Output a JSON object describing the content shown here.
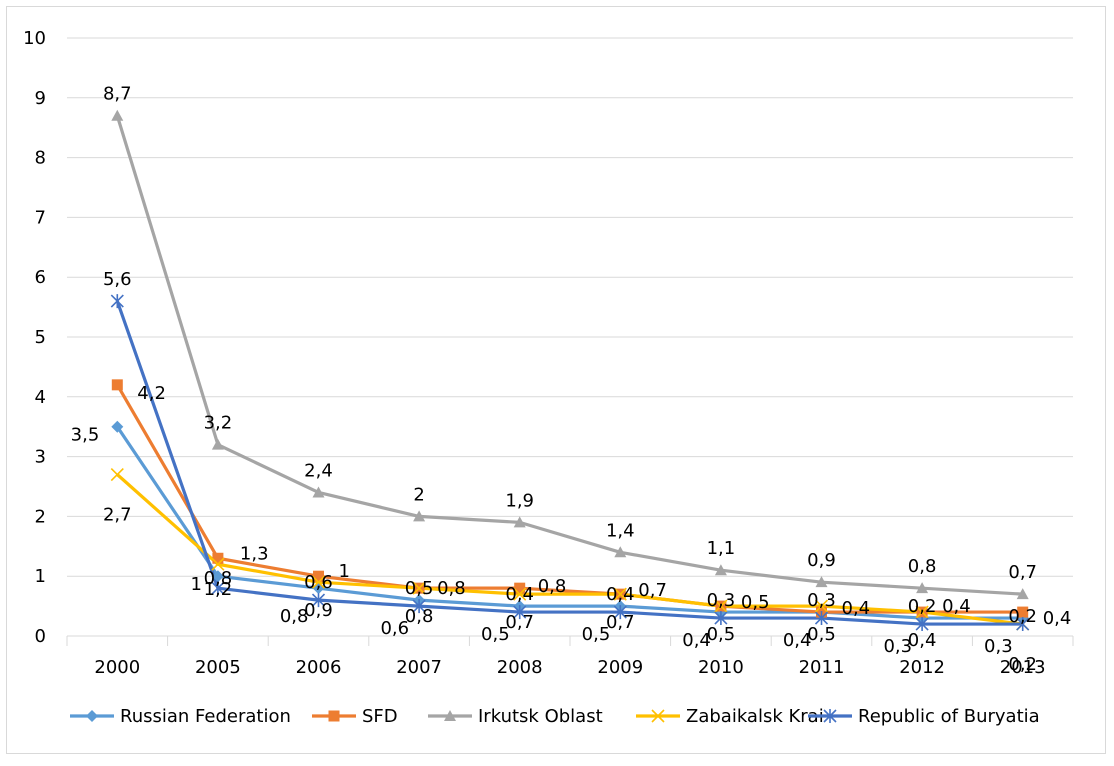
{
  "chart_data": {
    "type": "line",
    "categories": [
      "2000",
      "2005",
      "2006",
      "2007",
      "2008",
      "2009",
      "2010",
      "2011",
      "2012",
      "2013"
    ],
    "ylim": [
      0,
      10
    ],
    "yticks": [
      "0",
      "1",
      "2",
      "3",
      "4",
      "5",
      "6",
      "7",
      "8",
      "9",
      "10"
    ],
    "grid": true,
    "legend_position": "bottom",
    "series": [
      {
        "name": "Russian Federation",
        "color": "#5b9bd5",
        "marker": "diamond",
        "values": [
          3.5,
          1,
          0.8,
          0.6,
          0.5,
          0.5,
          0.4,
          0.4,
          0.3,
          0.3
        ],
        "labels": [
          "3,5",
          "1",
          "0,8",
          "0,6",
          "0,5",
          "0,5",
          "0,4",
          "0,4",
          "0,3",
          "0,3"
        ]
      },
      {
        "name": "SFD",
        "color": "#ed7d31",
        "marker": "square",
        "values": [
          4.2,
          1.3,
          1,
          0.8,
          0.8,
          0.7,
          0.5,
          0.4,
          0.4,
          0.4
        ],
        "labels": [
          "4,2",
          "1,3",
          "1",
          "0,8",
          "0,8",
          "0,7",
          "0,5",
          "0,4",
          "0,4",
          "0,4"
        ]
      },
      {
        "name": "Irkutsk Oblast",
        "color": "#a5a5a5",
        "marker": "triangle",
        "values": [
          8.7,
          3.2,
          2.4,
          2,
          1.9,
          1.4,
          1.1,
          0.9,
          0.8,
          0.7
        ],
        "labels": [
          "8,7",
          "3,2",
          "2,4",
          "2",
          "1,9",
          "1,4",
          "1,1",
          "0,9",
          "0,8",
          "0,7"
        ]
      },
      {
        "name": "Zabaikalsk Krai",
        "color": "#ffc000",
        "marker": "x",
        "values": [
          2.7,
          1.2,
          0.9,
          0.8,
          0.7,
          0.7,
          0.5,
          0.5,
          0.4,
          0.2
        ],
        "labels": [
          "2,7",
          "1,2",
          "0,9",
          "0,8",
          "0,7",
          "0,7",
          "0,5",
          "0,5",
          "0,4",
          "0,2"
        ]
      },
      {
        "name": "Republic of Buryatia",
        "color": "#4472c4",
        "marker": "star",
        "values": [
          5.6,
          0.8,
          0.6,
          0.5,
          0.4,
          0.4,
          0.3,
          0.3,
          0.2,
          0.2
        ],
        "labels": [
          "5,6",
          "0,8",
          "0,6",
          "0,5",
          "0,4",
          "0,4",
          "0,3",
          "0,3",
          "0,2",
          "0,2"
        ]
      }
    ]
  }
}
